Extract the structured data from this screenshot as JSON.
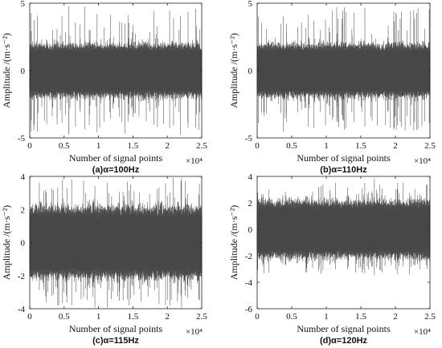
{
  "chart_data": [
    {
      "type": "line",
      "caption": "(a)α=100Hz",
      "xlabel": "Number of signal points",
      "ylabel": "Amplitude /(m·s⁻²)",
      "x_multiplier": "×10⁴",
      "xlim": [
        0,
        2.5
      ],
      "ylim": [
        -5,
        5
      ],
      "xticks": [
        "0",
        "0.5",
        "1",
        "1.5",
        "2",
        "2.5"
      ],
      "yticks": [
        "-5",
        "0",
        "5"
      ],
      "ytick_values": [
        -5,
        0,
        5
      ],
      "series": [
        {
          "num_points": 25000,
          "envelope_typical": 2.0,
          "envelope_peak": 4.6,
          "color": "#4d4d4d"
        }
      ]
    },
    {
      "type": "line",
      "caption": "(b)α=110Hz",
      "xlabel": "Number of signal points",
      "ylabel": "Amplitude /(m·s⁻²)",
      "x_multiplier": "×10⁴",
      "xlim": [
        0,
        2.5
      ],
      "ylim": [
        -5,
        5
      ],
      "xticks": [
        "0",
        "0.5",
        "1",
        "1.5",
        "2",
        "2.5"
      ],
      "yticks": [
        "-5",
        "0",
        "5"
      ],
      "ytick_values": [
        -5,
        0,
        5
      ],
      "series": [
        {
          "num_points": 25000,
          "envelope_typical": 2.0,
          "envelope_peak": 4.6,
          "color": "#4d4d4d"
        }
      ]
    },
    {
      "type": "line",
      "caption": "(c)α=115Hz",
      "xlabel": "Number of signal points",
      "ylabel": "Amplitude /(m·s⁻²)",
      "x_multiplier": "×10⁴",
      "xlim": [
        0,
        2.5
      ],
      "ylim": [
        -4,
        4
      ],
      "xticks": [
        "0",
        "0.5",
        "1",
        "1.5",
        "2",
        "2.5"
      ],
      "yticks": [
        "-4",
        "-2",
        "0",
        "2",
        "4"
      ],
      "ytick_values": [
        -4,
        -2,
        0,
        2,
        4
      ],
      "series": [
        {
          "num_points": 25000,
          "envelope_typical": 2.2,
          "envelope_peak": 3.8,
          "color": "#4d4d4d"
        }
      ]
    },
    {
      "type": "line",
      "caption": "(d)α=120Hz",
      "xlabel": "Number of signal points",
      "ylabel": "Amplitude /(m·s⁻²)",
      "x_multiplier": "×10⁴",
      "xlim": [
        0,
        2.5
      ],
      "ylim": [
        -6,
        4
      ],
      "xticks": [
        "0",
        "0.5",
        "1",
        "1.5",
        "2",
        "2.5"
      ],
      "yticks": [
        "-6",
        "-4",
        "-2",
        "0",
        "2",
        "4"
      ],
      "ytick_values": [
        -6,
        -4,
        -2,
        0,
        2,
        4
      ],
      "series": [
        {
          "num_points": 25000,
          "envelope_typical": 2.2,
          "envelope_peak": 3.4,
          "color": "#4d4d4d"
        }
      ]
    }
  ]
}
